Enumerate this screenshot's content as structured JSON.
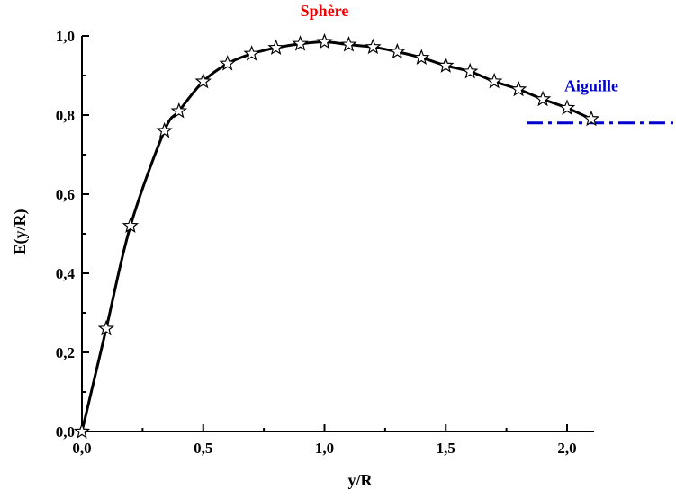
{
  "chart_data": {
    "type": "line",
    "title": "",
    "xlabel": "y/R",
    "ylabel": "E(y/R)",
    "xlim": [
      0,
      2.2
    ],
    "ylim": [
      0,
      1.0
    ],
    "x_ticks": [
      0.0,
      0.5,
      1.0,
      1.5,
      2.0
    ],
    "x_tick_labels": [
      "0,0",
      "0,5",
      "1,0",
      "1,5",
      "2,0"
    ],
    "y_ticks": [
      0.0,
      0.2,
      0.4,
      0.6,
      0.8,
      1.0
    ],
    "y_tick_labels": [
      "0,0",
      "0,2",
      "0,4",
      "0,6",
      "0,8",
      "1,0"
    ],
    "grid": false,
    "series": [
      {
        "color": "#000000",
        "marker": "star",
        "x": [
          0.0,
          0.1,
          0.2,
          0.34,
          0.4,
          0.5,
          0.6,
          0.7,
          0.8,
          0.9,
          1.0,
          1.1,
          1.2,
          1.3,
          1.4,
          1.5,
          1.6,
          1.7,
          1.8,
          1.9,
          2.0,
          2.1
        ],
        "y": [
          0.0,
          0.26,
          0.52,
          0.76,
          0.81,
          0.885,
          0.93,
          0.955,
          0.97,
          0.98,
          0.985,
          0.978,
          0.972,
          0.96,
          0.945,
          0.925,
          0.91,
          0.885,
          0.865,
          0.84,
          0.818,
          0.79
        ]
      }
    ],
    "reference_line": {
      "color": "#0000cc",
      "style": "dash-dot",
      "y": 0.78,
      "x_start": 2.0
    },
    "annotations": [
      {
        "text": "Sphère",
        "color": "#ee0000",
        "x": 1.0,
        "y": 1.05
      },
      {
        "text": "Aiguille",
        "color": "#0000cc",
        "x": 2.1,
        "y": 0.86
      }
    ]
  }
}
